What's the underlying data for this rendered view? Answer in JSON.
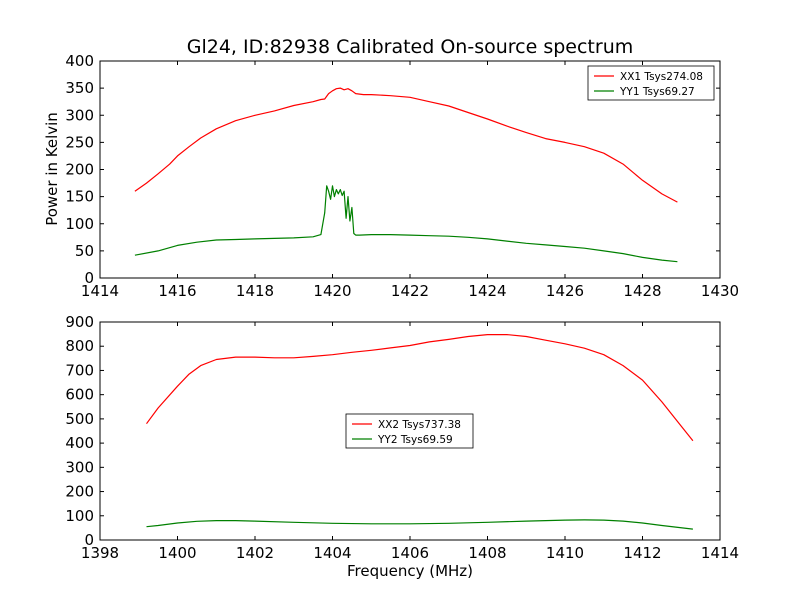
{
  "figure": {
    "title": "Gl24, ID:82938 Calibrated On-source spectrum",
    "xlabel": "Frequency (MHz)",
    "ylabel": "Power in Kelvin"
  },
  "chart_data": [
    {
      "type": "line",
      "title": "Gl24, ID:82938 Calibrated On-source spectrum",
      "xlabel": "",
      "ylabel": "Power in Kelvin",
      "xlim": [
        1414,
        1430
      ],
      "ylim": [
        0,
        400
      ],
      "xticks": [
        1414,
        1416,
        1418,
        1420,
        1422,
        1424,
        1426,
        1428,
        1430
      ],
      "yticks": [
        0,
        50,
        100,
        150,
        200,
        250,
        300,
        350,
        400
      ],
      "grid": false,
      "legend_position": "top-right",
      "series": [
        {
          "name": "XX1 Tsys274.08",
          "color": "#ff0000",
          "x": [
            1414.9,
            1415.2,
            1415.5,
            1415.8,
            1416.0,
            1416.3,
            1416.6,
            1417.0,
            1417.5,
            1418.0,
            1418.5,
            1419.0,
            1419.5,
            1419.7,
            1419.8,
            1419.9,
            1420.0,
            1420.1,
            1420.2,
            1420.3,
            1420.4,
            1420.5,
            1420.6,
            1420.8,
            1421.0,
            1421.5,
            1422.0,
            1422.5,
            1423.0,
            1423.5,
            1424.0,
            1424.5,
            1425.0,
            1425.5,
            1426.0,
            1426.5,
            1427.0,
            1427.5,
            1428.0,
            1428.5,
            1428.9
          ],
          "y": [
            160,
            175,
            192,
            210,
            225,
            242,
            258,
            275,
            290,
            300,
            308,
            318,
            325,
            329,
            330,
            340,
            345,
            349,
            350,
            347,
            349,
            345,
            340,
            338,
            338,
            336,
            333,
            325,
            317,
            305,
            293,
            280,
            268,
            257,
            250,
            242,
            230,
            210,
            180,
            155,
            140
          ]
        },
        {
          "name": "YY1 Tsys69.27",
          "color": "#008000",
          "x": [
            1414.9,
            1415.5,
            1416.0,
            1416.5,
            1417.0,
            1417.5,
            1418.0,
            1418.5,
            1419.0,
            1419.5,
            1419.7,
            1419.8,
            1419.85,
            1419.9,
            1419.95,
            1420.0,
            1420.05,
            1420.1,
            1420.15,
            1420.2,
            1420.25,
            1420.3,
            1420.35,
            1420.4,
            1420.45,
            1420.5,
            1420.55,
            1420.6,
            1420.7,
            1421.0,
            1421.5,
            1422.0,
            1422.5,
            1423.0,
            1423.5,
            1424.0,
            1424.5,
            1425.0,
            1425.5,
            1426.0,
            1426.5,
            1427.0,
            1427.5,
            1428.0,
            1428.5,
            1428.9
          ],
          "y": [
            42,
            50,
            60,
            66,
            70,
            71,
            72,
            73,
            74,
            76,
            80,
            120,
            170,
            160,
            145,
            170,
            150,
            163,
            155,
            163,
            152,
            160,
            110,
            150,
            105,
            130,
            82,
            79,
            79,
            80,
            80,
            79,
            78,
            77,
            75,
            72,
            68,
            64,
            61,
            58,
            55,
            50,
            45,
            38,
            33,
            30
          ]
        }
      ]
    },
    {
      "type": "line",
      "title": "",
      "xlabel": "Frequency (MHz)",
      "ylabel": "",
      "xlim": [
        1398,
        1414
      ],
      "ylim": [
        0,
        900
      ],
      "xticks": [
        1398,
        1400,
        1402,
        1404,
        1406,
        1408,
        1410,
        1412,
        1414
      ],
      "yticks": [
        0,
        100,
        200,
        300,
        400,
        500,
        600,
        700,
        800,
        900
      ],
      "grid": false,
      "legend_position": "center",
      "series": [
        {
          "name": "XX2 Tsys737.38",
          "color": "#ff0000",
          "x": [
            1399.2,
            1399.5,
            1400.0,
            1400.3,
            1400.6,
            1401.0,
            1401.5,
            1402.0,
            1402.5,
            1403.0,
            1403.5,
            1404.0,
            1404.5,
            1405.0,
            1405.5,
            1406.0,
            1406.5,
            1407.0,
            1407.5,
            1408.0,
            1408.5,
            1409.0,
            1409.5,
            1410.0,
            1410.5,
            1411.0,
            1411.5,
            1412.0,
            1412.5,
            1413.0,
            1413.3
          ],
          "y": [
            480,
            545,
            635,
            685,
            720,
            745,
            755,
            755,
            752,
            752,
            758,
            765,
            775,
            783,
            793,
            803,
            818,
            828,
            840,
            848,
            848,
            840,
            825,
            810,
            792,
            765,
            720,
            660,
            570,
            470,
            410
          ]
        },
        {
          "name": "YY2 Tsys69.59",
          "color": "#008000",
          "x": [
            1399.2,
            1399.5,
            1400.0,
            1400.5,
            1401.0,
            1401.5,
            1402.0,
            1403.0,
            1404.0,
            1405.0,
            1406.0,
            1407.0,
            1408.0,
            1409.0,
            1410.0,
            1410.5,
            1411.0,
            1411.5,
            1412.0,
            1412.5,
            1413.3
          ],
          "y": [
            55,
            60,
            70,
            77,
            80,
            80,
            78,
            73,
            69,
            67,
            67,
            69,
            73,
            78,
            82,
            83,
            82,
            78,
            70,
            60,
            45
          ]
        }
      ]
    }
  ]
}
